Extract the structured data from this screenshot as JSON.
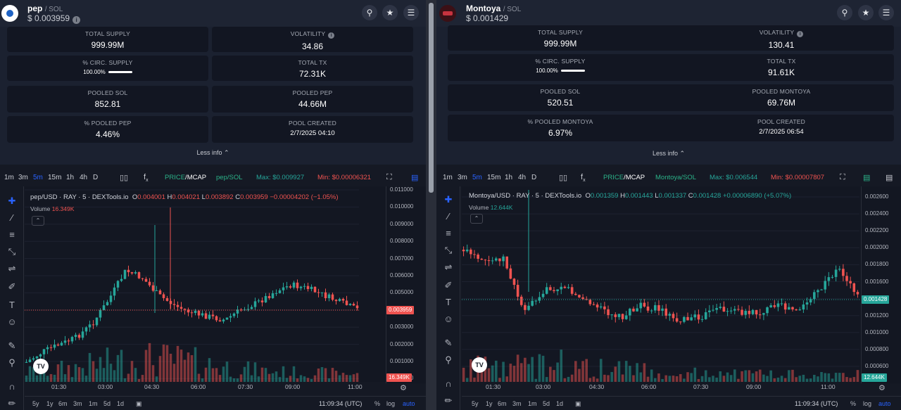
{
  "colors": {
    "up": "#26a69a",
    "down": "#ef5350",
    "accent": "#2962ff",
    "bg": "#131722",
    "card": "#121622"
  },
  "panes": [
    {
      "token": {
        "name": "pep",
        "pair": "/ SOL",
        "price": "$ 0.003959"
      },
      "stats": [
        {
          "label": "TOTAL SUPPLY",
          "value": "999.99M"
        },
        {
          "label": "VOLATILITY",
          "value": "34.86"
        },
        {
          "label": "% CIRC. SUPPLY",
          "value": "100.00%"
        },
        {
          "label": "TOTAL TX",
          "value": "72.31K"
        },
        {
          "label": "POOLED SOL",
          "value": "852.81"
        },
        {
          "label": "POOLED PEP",
          "value": "44.66M"
        },
        {
          "label": "% POOLED PEP",
          "value": "4.46%"
        },
        {
          "label": "POOL CREATED",
          "value": "2/7/2025 04:10"
        }
      ],
      "less_info": "Less info",
      "timeframes": [
        "1m",
        "3m",
        "5m",
        "15m",
        "1h",
        "4h",
        "D"
      ],
      "active_timeframe": "5m",
      "price_mcap": {
        "a": "PRICE",
        "b": "MCAP"
      },
      "pair_toggle": "pep/SOL",
      "max": "Max: $0.009927",
      "min": "Min: $0.00006321",
      "legend": {
        "symbol": "pep/USD · RAY · 5 · DEXTools.io",
        "o": "0.004001",
        "h": "0.004021",
        "l": "0.003892",
        "c": "0.003959",
        "chg": "−0.00004202 (−1.05%)"
      },
      "volume": {
        "label": "Volume",
        "value": "16.349K"
      },
      "current_price": "0.003959",
      "current_volume": "16.349K",
      "y_ticks": [
        "0.011000",
        "0.010000",
        "0.009000",
        "0.008000",
        "0.007000",
        "0.006000",
        "0.005000",
        "0.004000",
        "0.003000",
        "0.002000",
        "0.001000",
        "0.000000"
      ],
      "x_ticks": [
        "01:30",
        "03:00",
        "04:30",
        "06:00",
        "07:30",
        "09:00",
        "11:00"
      ],
      "ranges": [
        "5y",
        "1y",
        "6m",
        "3m",
        "1m",
        "5d",
        "1d"
      ],
      "time": "11:09:34 (UTC)",
      "scale": {
        "pct": "%",
        "log": "log",
        "auto": "auto"
      },
      "tv_logo": "TV"
    },
    {
      "token": {
        "name": "Montoya",
        "pair": "/ SOL",
        "price": "$ 0.001429"
      },
      "stats": [
        {
          "label": "TOTAL SUPPLY",
          "value": "999.99M"
        },
        {
          "label": "VOLATILITY",
          "value": "130.41"
        },
        {
          "label": "% CIRC. SUPPLY",
          "value": "100.00%"
        },
        {
          "label": "TOTAL TX",
          "value": "91.61K"
        },
        {
          "label": "POOLED SOL",
          "value": "520.51"
        },
        {
          "label": "POOLED MONTOYA",
          "value": "69.76M"
        },
        {
          "label": "% POOLED MONTOYA",
          "value": "6.97%"
        },
        {
          "label": "POOL CREATED",
          "value": "2/7/2025 06:54"
        }
      ],
      "less_info": "Less info",
      "timeframes": [
        "1m",
        "3m",
        "5m",
        "15m",
        "1h",
        "4h",
        "D"
      ],
      "active_timeframe": "5m",
      "price_mcap": {
        "a": "PRICE",
        "b": "MCAP"
      },
      "pair_toggle": "Montoya/SOL",
      "max": "Max: $0.006544",
      "min": "Min: $0.00007807",
      "legend": {
        "symbol": "Montoya/USD · RAY · 5 · DEXTools.io",
        "o": "0.001359",
        "h": "0.001443",
        "l": "0.001337",
        "c": "0.001428",
        "chg": "+0.00006890 (+5.07%)"
      },
      "volume": {
        "label": "Volume",
        "value": "12.644K"
      },
      "current_price": "0.001428",
      "current_volume": "12.644K",
      "y_ticks": [
        "0.002600",
        "0.002400",
        "0.002200",
        "0.002000",
        "0.001800",
        "0.001600",
        "0.001400",
        "0.001200",
        "0.001000",
        "0.000800",
        "0.000600"
      ],
      "x_ticks": [
        "01:30",
        "03:00",
        "04:30",
        "06:00",
        "07:30",
        "09:00",
        "11:00"
      ],
      "ranges": [
        "5y",
        "1y",
        "6m",
        "3m",
        "1m",
        "5d",
        "1d"
      ],
      "time": "11:09:34 (UTC)",
      "scale": {
        "pct": "%",
        "log": "log",
        "auto": "auto"
      },
      "tv_logo": "TV"
    }
  ]
}
